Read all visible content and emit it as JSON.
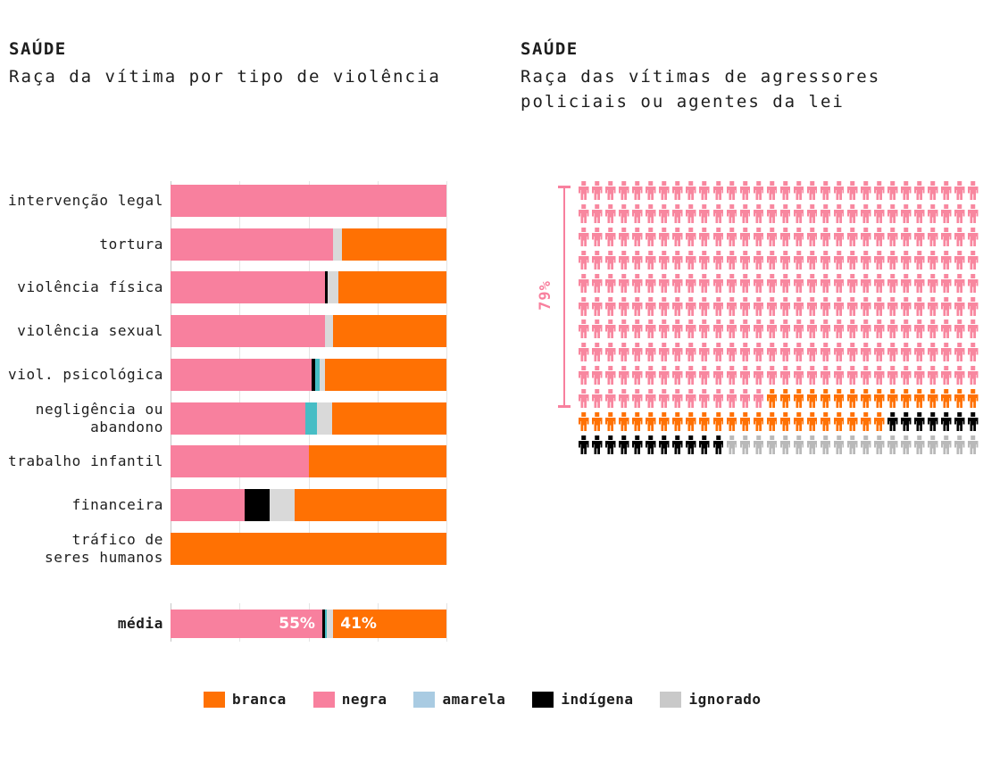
{
  "left_chart": {
    "kicker": "SAÚDE",
    "title": "Raça da vítima por tipo de violência"
  },
  "right_chart": {
    "kicker": "SAÚDE",
    "title": "Raça das vítimas de agressores policiais ou agentes da lei",
    "annotation": "79%"
  },
  "legend": {
    "items": [
      {
        "label": "branca",
        "color": "#ff7103"
      },
      {
        "label": "negra",
        "color": "#f8809e"
      },
      {
        "label": "amarela",
        "color": "#a9cbe2"
      },
      {
        "label": "indígena",
        "color": "#000000"
      },
      {
        "label": "ignorado",
        "color": "#c9c9c9"
      }
    ]
  },
  "colors": {
    "accent_pink": "#f8809e",
    "accent_orange": "#ff7103",
    "bar_teal": "#47bdc5",
    "bar_gray": "#d9d9d9",
    "waffle_gray": "#b9b9b9",
    "text": "#1d1d1d"
  },
  "chart_data": [
    {
      "type": "bar",
      "orientation": "horizontal",
      "stacked": true,
      "title": "SAÚDE — Raça da vítima por tipo de violência",
      "xlim": [
        0,
        100
      ],
      "gridlines_pct": [
        0,
        25,
        50,
        75,
        100
      ],
      "categories": [
        "intervenção legal",
        "tortura",
        "violência física",
        "violência sexual",
        "viol. psicológica",
        "negligência ou\nabandono",
        "trabalho infantil",
        "financeira",
        "tráfico de\nseres humanos"
      ],
      "series": [
        {
          "name": "negra",
          "color": "#f8809e",
          "values": [
            100,
            59,
            56,
            56,
            51,
            49,
            50,
            27,
            0
          ]
        },
        {
          "name": "indígena",
          "color": "#000000",
          "values": [
            0,
            0,
            1,
            0,
            1.5,
            0,
            0,
            9,
            0
          ]
        },
        {
          "name": "amarela",
          "color": "#47bdc5",
          "values": [
            0,
            0,
            0,
            0,
            1.5,
            4,
            0,
            0,
            0
          ]
        },
        {
          "name": "ignorado",
          "color": "#d9d9d9",
          "values": [
            0,
            3,
            4,
            3,
            2,
            5.5,
            0,
            9,
            0
          ]
        },
        {
          "name": "branca",
          "color": "#ff7103",
          "values": [
            0,
            38,
            39,
            41,
            44,
            41.5,
            50,
            55,
            100
          ]
        }
      ],
      "summary_row": {
        "category": "média",
        "segments": [
          {
            "name": "negra",
            "color": "#f8809e",
            "value": 55,
            "label": "55%"
          },
          {
            "name": "indígena",
            "color": "#000000",
            "value": 1
          },
          {
            "name": "amarela",
            "color": "#47bdc5",
            "value": 0.7
          },
          {
            "name": "ignorado",
            "color": "#d9d9d9",
            "value": 2.3
          },
          {
            "name": "branca",
            "color": "#ff7103",
            "value": 41,
            "label": "41%"
          }
        ]
      }
    },
    {
      "type": "pictogram",
      "title": "SAÚDE — Raça das vítimas de agressores policiais ou agentes da lei",
      "columns": 30,
      "rows": 12,
      "total_units": 360,
      "series": [
        {
          "name": "negra",
          "color": "#f8879f",
          "units": 284,
          "pct_label": "79%"
        },
        {
          "name": "branca",
          "color": "#ff7103",
          "units": 39
        },
        {
          "name": "indígena",
          "color": "#000000",
          "units": 18
        },
        {
          "name": "ignorado",
          "color": "#b9b9b9",
          "units": 19
        }
      ],
      "annotation": {
        "label": "79%",
        "series": "negra"
      }
    }
  ]
}
